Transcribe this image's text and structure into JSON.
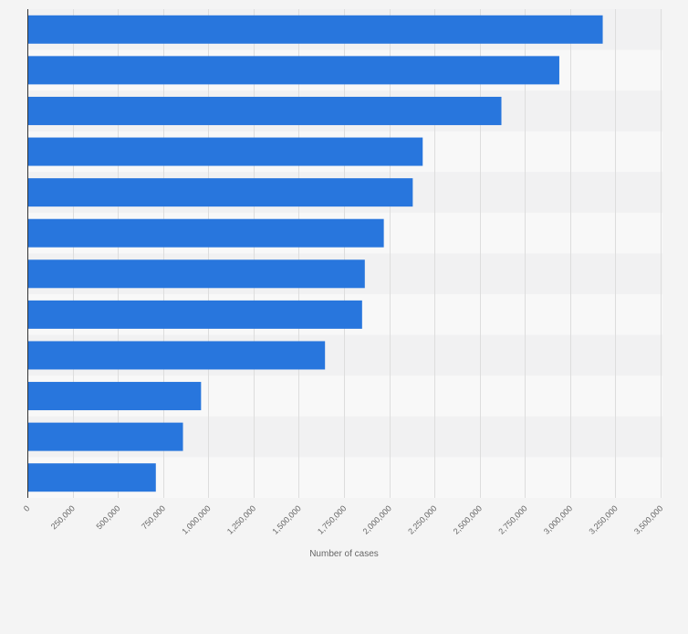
{
  "colors": {
    "bar": "#2876dd",
    "background": "#f4f4f4",
    "band_light": "#f8f8f8",
    "band_dark": "#f1f1f2",
    "grid": "#dddddd",
    "text": "#666666"
  },
  "chart_data": {
    "type": "bar",
    "orientation": "horizontal",
    "title": "",
    "xlabel": "Number of cases",
    "ylabel": "",
    "xlim": [
      0,
      3500000
    ],
    "grid": true,
    "x_ticks": [
      0,
      250000,
      500000,
      750000,
      1000000,
      1250000,
      1500000,
      1750000,
      2000000,
      2250000,
      2500000,
      2750000,
      3000000,
      3250000,
      3500000
    ],
    "x_tick_labels": [
      "0",
      "250,000",
      "500,000",
      "750,000",
      "1,000,000",
      "1,250,000",
      "1,500,000",
      "1,750,000",
      "2,000,000",
      "2,250,000",
      "2,500,000",
      "2,750,000",
      "3,000,000",
      "3,250,000",
      "3,500,000"
    ],
    "values": [
      3180000,
      2940000,
      2620000,
      2185000,
      2130000,
      1970000,
      1865000,
      1850000,
      1645000,
      960000,
      860000,
      710000
    ]
  }
}
